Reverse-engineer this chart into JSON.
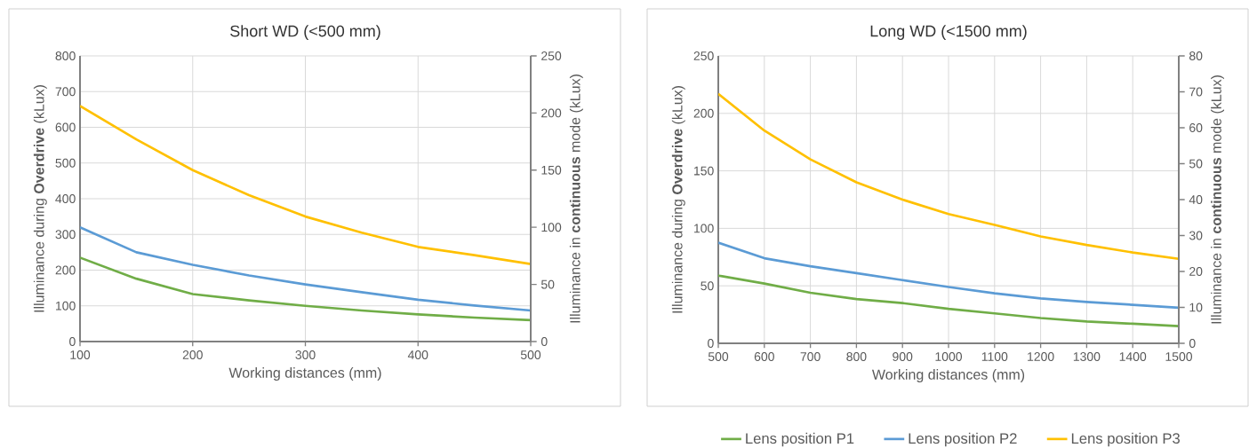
{
  "chart_data": [
    {
      "type": "line",
      "title": "Short WD (<500 mm)",
      "xlabel": "Working distances (mm)",
      "ylabel": "Illuminance during **Overdrive** (kLux)",
      "y2label": "Illuminance in **continuous** mode (kLux)",
      "x": [
        100,
        150,
        200,
        250,
        300,
        350,
        400,
        450,
        500
      ],
      "xlim": [
        100,
        500
      ],
      "xticks": [
        100,
        200,
        300,
        400,
        500
      ],
      "ylim": [
        0,
        800
      ],
      "yticks": [
        0,
        100,
        200,
        300,
        400,
        500,
        600,
        700,
        800
      ],
      "y2lim": [
        0,
        250
      ],
      "y2ticks": [
        0,
        50,
        100,
        150,
        200,
        250
      ],
      "grid": true,
      "legend": false,
      "series": [
        {
          "color": "#70ad47",
          "values": [
            235,
            176,
            133,
            115,
            100,
            87,
            76,
            67,
            60
          ]
        },
        {
          "color": "#5b9bd5",
          "values": [
            320,
            250,
            215,
            185,
            160,
            138,
            117,
            101,
            87
          ]
        },
        {
          "color": "#ffc000",
          "values": [
            660,
            566,
            480,
            410,
            350,
            305,
            265,
            242,
            217
          ]
        }
      ]
    },
    {
      "type": "line",
      "title": "Long WD (<1500 mm)",
      "xlabel": "Working distances (mm)",
      "ylabel": "Illuminance during **Overdrive** (kLux)",
      "y2label": "Illuminance in **continuous** mode (kLux)",
      "x": [
        500,
        600,
        700,
        800,
        900,
        1000,
        1100,
        1200,
        1300,
        1400,
        1500
      ],
      "xlim": [
        500,
        1500
      ],
      "xticks": [
        500,
        600,
        700,
        800,
        900,
        1000,
        1100,
        1200,
        1300,
        1400,
        1500
      ],
      "ylim": [
        0,
        250
      ],
      "yticks": [
        0,
        50,
        100,
        150,
        200,
        250
      ],
      "y2lim": [
        0,
        80
      ],
      "y2ticks": [
        0,
        10,
        20,
        30,
        40,
        50,
        60,
        70,
        80
      ],
      "grid": true,
      "legend": "bottom",
      "series": [
        {
          "name": "Lens position P1",
          "color": "#70ad47",
          "values": [
            59,
            52,
            44,
            38.5,
            35,
            30,
            26,
            22,
            19,
            17,
            15
          ]
        },
        {
          "name": "Lens position P2",
          "color": "#5b9bd5",
          "values": [
            87.5,
            74,
            67,
            61,
            55,
            49,
            43.5,
            39,
            36,
            33.5,
            31
          ]
        },
        {
          "name": "Lens position P3",
          "color": "#ffc000",
          "values": [
            217,
            185,
            160,
            140,
            125,
            112.5,
            103,
            93,
            85.5,
            79,
            73.5
          ]
        }
      ]
    }
  ]
}
